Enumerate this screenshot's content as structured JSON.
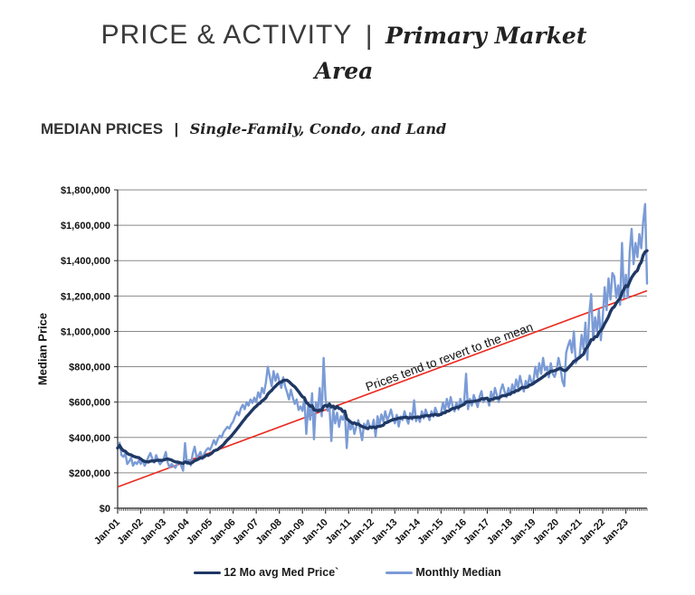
{
  "header": {
    "title_main": "PRICE & ACTIVITY",
    "title_separator": "|",
    "title_accent_line1": "Primary Market",
    "title_accent_line2": "Area"
  },
  "section": {
    "title": "MEDIAN PRICES",
    "separator": "|",
    "accent": "Single-Family, Condo, and Land"
  },
  "chart_data": {
    "type": "line",
    "ylabel": "Median Price",
    "ylim": [
      0,
      1800000
    ],
    "y_tick_step": 200000,
    "y_tick_labels": [
      "$0",
      "$200,000",
      "$400,000",
      "$600,000",
      "$800,000",
      "$1,000,000",
      "$1,200,000",
      "$1,400,000",
      "$1,600,000",
      "$1,800,000"
    ],
    "x_tick_labels": [
      "Jan-01",
      "Jan-02",
      "Jan-03",
      "Jan-04",
      "Jan-05",
      "Jan-06",
      "Jan-07",
      "Jan-08",
      "Jan-09",
      "Jan-10",
      "Jan-11",
      "Jan-12",
      "Jan-13",
      "Jan-14",
      "Jan-15",
      "Jan-16",
      "Jan-17",
      "Jan-18",
      "Jan-19",
      "Jan-20",
      "Jan-21",
      "Jan-22",
      "Jan-23"
    ],
    "x_start": "Jan-01",
    "x_end": "Dec-23",
    "points_per_year": 12,
    "grid": true,
    "legend_position": "bottom",
    "annotation": "Prices tend to revert to the mean",
    "trend": {
      "start_value": 120000,
      "end_value": 1230000,
      "color": "#ea2a20"
    },
    "colors": {
      "grid": "#8a8a8a",
      "axis": "#2b2b2b"
    },
    "series": [
      {
        "name": "Monthly Median",
        "color": "#7a9bd6",
        "values": [
          340000,
          370000,
          300000,
          290000,
          310000,
          250000,
          265000,
          285000,
          240000,
          260000,
          250000,
          270000,
          250000,
          272000,
          240000,
          262000,
          290000,
          312000,
          280000,
          258000,
          300000,
          270000,
          248000,
          262000,
          282000,
          318000,
          258000,
          230000,
          250000,
          238000,
          228000,
          252000,
          262000,
          240000,
          212000,
          368000,
          250000,
          272000,
          242000,
          308000,
          348000,
          288000,
          298000,
          318000,
          278000,
          308000,
          328000,
          340000,
          330000,
          355000,
          385000,
          360000,
          390000,
          410000,
          400000,
          430000,
          445000,
          460000,
          450000,
          475000,
          490000,
          520000,
          545000,
          525000,
          565000,
          585000,
          560000,
          600000,
          580000,
          615000,
          595000,
          625000,
          600000,
          655000,
          625000,
          680000,
          650000,
          710000,
          800000,
          745000,
          690000,
          775000,
          720000,
          760000,
          720000,
          680000,
          740000,
          690000,
          655000,
          615000,
          670000,
          625000,
          590000,
          615000,
          555000,
          575000,
          550000,
          620000,
          420000,
          580000,
          500000,
          650000,
          390000,
          600000,
          550000,
          680000,
          520000,
          850000,
          620000,
          550000,
          580000,
          380000,
          560000,
          480000,
          540000,
          460000,
          520000,
          500000,
          550000,
          340000,
          500000,
          445000,
          480000,
          420000,
          462000,
          498000,
          440000,
          385000,
          478000,
          450000,
          496000,
          460000,
          452000,
          500000,
          405000,
          520000,
          470000,
          530000,
          490000,
          548000,
          500000,
          522000,
          558000,
          510000,
          480000,
          528000,
          462000,
          518000,
          498000,
          548000,
          508000,
          478000,
          538000,
          500000,
          610000,
          492000,
          518000,
          488000,
          548000,
          508000,
          558000,
          528000,
          498000,
          548000,
          518000,
          568000,
          538000,
          522000,
          540000,
          598000,
          548000,
          618000,
          568000,
          628000,
          578000,
          548000,
          598000,
          558000,
          618000,
          588000,
          600000,
          760000,
          560000,
          618000,
          580000,
          640000,
          605000,
          572000,
          630000,
          662000,
          600000,
          618000,
          620000,
          580000,
          660000,
          612000,
          680000,
          640000,
          600000,
          668000,
          700000,
          660000,
          628000,
          680000,
          640000,
          700000,
          660000,
          728000,
          680000,
          748000,
          700000,
          660000,
          720000,
          690000,
          750000,
          712000,
          720000,
          800000,
          740000,
          820000,
          760000,
          850000,
          780000,
          800000,
          740000,
          820000,
          760000,
          742000,
          780000,
          850000,
          800000,
          720000,
          690000,
          880000,
          920000,
          950000,
          880000,
          1000000,
          820000,
          850000,
          860000,
          980000,
          900000,
          1050000,
          840000,
          1100000,
          1210000,
          950000,
          1080000,
          1000000,
          1120000,
          950000,
          1080000,
          1250000,
          1120000,
          1300000,
          1180000,
          1330000,
          1310000,
          1190000,
          1260000,
          1150000,
          1500000,
          1190000,
          1320000,
          1190000,
          1450000,
          1580000,
          1380000,
          1500000,
          1420000,
          1550000,
          1470000,
          1620000,
          1720000,
          1270000
        ]
      },
      {
        "name": "12 Mo avg Med Price`",
        "color": "#1f3864",
        "derived": "rolling_mean_12_of_monthly_median"
      }
    ]
  }
}
